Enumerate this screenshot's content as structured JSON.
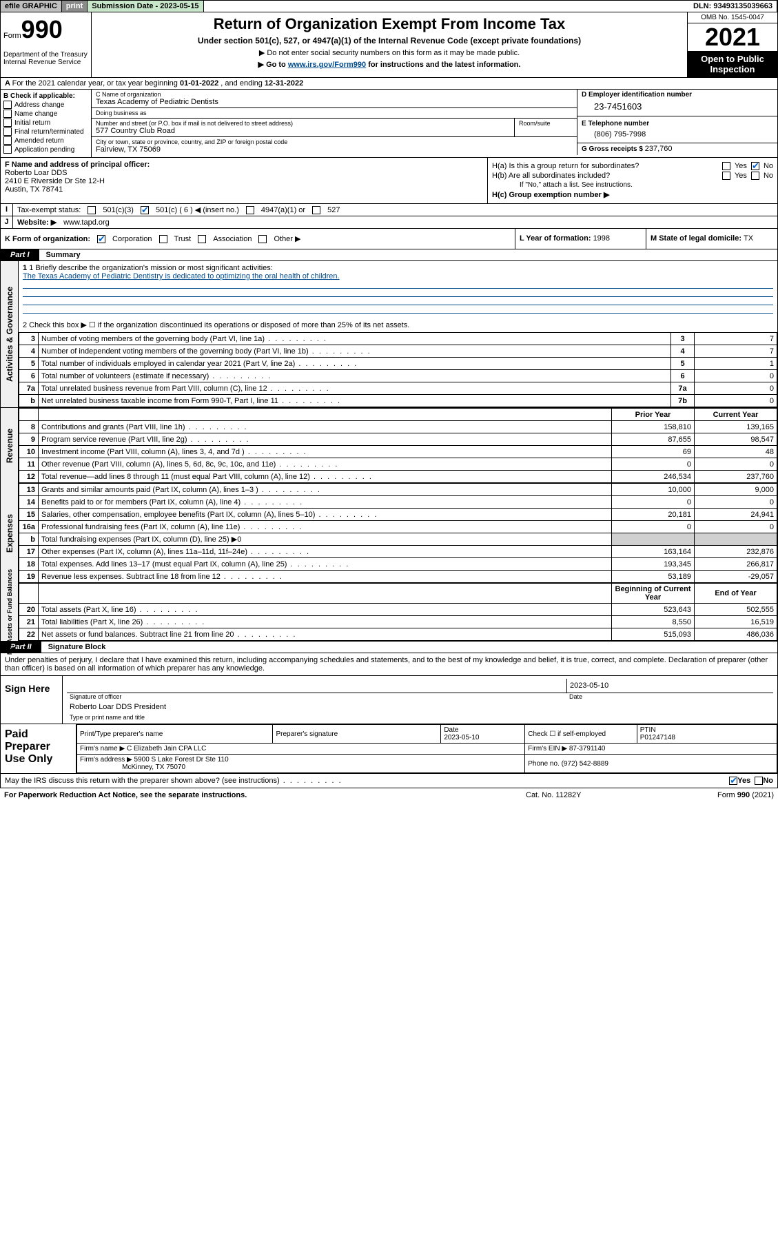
{
  "topbar": {
    "efile": "efile GRAPHIC",
    "print": "print",
    "subdate_label": "Submission Date - ",
    "subdate": "2023-05-15",
    "dln_label": "DLN: ",
    "dln": "93493135039663"
  },
  "header": {
    "form_prefix": "Form",
    "form_num": "990",
    "dept": "Department of the Treasury\nInternal Revenue Service",
    "title": "Return of Organization Exempt From Income Tax",
    "sub": "Under section 501(c), 527, or 4947(a)(1) of the Internal Revenue Code (except private foundations)",
    "note1": "▶ Do not enter social security numbers on this form as it may be made public.",
    "note2_pre": "▶ Go to ",
    "note2_link": "www.irs.gov/Form990",
    "note2_post": " for instructions and the latest information.",
    "omb": "OMB No. 1545-0047",
    "year": "2021",
    "inspect": "Open to Public Inspection"
  },
  "rowA": {
    "text_pre": "For the 2021 calendar year, or tax year beginning ",
    "begin": "01-01-2022",
    "mid": "   , and ending ",
    "end": "12-31-2022"
  },
  "colB": {
    "label": "B Check if applicable:",
    "items": [
      "Address change",
      "Name change",
      "Initial return",
      "Final return/terminated",
      "Amended return",
      "Application pending"
    ]
  },
  "boxC": {
    "lbl": "C Name of organization",
    "val": "Texas Academy of Pediatric Dentists",
    "dba_lbl": "Doing business as",
    "dba_val": "",
    "street_lbl": "Number and street (or P.O. box if mail is not delivered to street address)",
    "street_val": "577 Country Club Road",
    "room_lbl": "Room/suite",
    "city_lbl": "City or town, state or province, country, and ZIP or foreign postal code",
    "city_val": "Fairview, TX  75069"
  },
  "boxD": {
    "lbl": "D Employer identification number",
    "val": "23-7451603"
  },
  "boxE": {
    "lbl": "E Telephone number",
    "val": "(806) 795-7998"
  },
  "boxG": {
    "lbl": "G Gross receipts $ ",
    "val": "237,760"
  },
  "boxF": {
    "lbl": "F Name and address of principal officer:",
    "name": "Roberto Loar DDS",
    "addr1": "2410 E Riverside Dr Ste 12-H",
    "addr2": "Austin, TX  78741"
  },
  "boxH": {
    "a": "H(a)  Is this a group return for subordinates?",
    "b": "H(b)  Are all subordinates included?",
    "bnote": "If \"No,\" attach a list. See instructions.",
    "c": "H(c)  Group exemption number ▶"
  },
  "rowI": {
    "lbl": "Tax-exempt status:",
    "c3": "501(c)(3)",
    "c": "501(c) ( 6 ) ◀ (insert no.)",
    "c4947": "4947(a)(1) or",
    "c527": "527"
  },
  "rowJ": {
    "lbl": "Website: ▶",
    "val": "www.tapd.org"
  },
  "rowK": {
    "lbl": "K Form of organization:",
    "corp": "Corporation",
    "trust": "Trust",
    "assoc": "Association",
    "other": "Other ▶",
    "yof_lbl": "L Year of formation: ",
    "yof": "1998",
    "dom_lbl": "M State of legal domicile: ",
    "dom": "TX"
  },
  "part1": {
    "tab": "Part I",
    "title": "Summary"
  },
  "mission": {
    "line1_lbl": "1  Briefly describe the organization's mission or most significant activities:",
    "line1_val": "The Texas Academy of Pediatric Dentistry is dedicated to optimizing the oral health of children.",
    "line2": "2  Check this box ▶ ☐  if the organization discontinued its operations or disposed of more than 25% of its net assets."
  },
  "actgov_rows": [
    {
      "n": "3",
      "t": "Number of voting members of the governing body (Part VI, line 1a)",
      "box": "3",
      "v": "7"
    },
    {
      "n": "4",
      "t": "Number of independent voting members of the governing body (Part VI, line 1b)",
      "box": "4",
      "v": "7"
    },
    {
      "n": "5",
      "t": "Total number of individuals employed in calendar year 2021 (Part V, line 2a)",
      "box": "5",
      "v": "1"
    },
    {
      "n": "6",
      "t": "Total number of volunteers (estimate if necessary)",
      "box": "6",
      "v": "0"
    },
    {
      "n": "7a",
      "t": "Total unrelated business revenue from Part VIII, column (C), line 12",
      "box": "7a",
      "v": "0"
    },
    {
      "n": "b",
      "t": "Net unrelated business taxable income from Form 990-T, Part I, line 11",
      "box": "7b",
      "v": "0"
    }
  ],
  "twocol_hdr": {
    "prior": "Prior Year",
    "current": "Current Year"
  },
  "twocol_hdr2": {
    "prior": "Beginning of Current Year",
    "current": "End of Year"
  },
  "revenue_rows": [
    {
      "n": "8",
      "t": "Contributions and grants (Part VIII, line 1h)",
      "p": "158,810",
      "c": "139,165"
    },
    {
      "n": "9",
      "t": "Program service revenue (Part VIII, line 2g)",
      "p": "87,655",
      "c": "98,547"
    },
    {
      "n": "10",
      "t": "Investment income (Part VIII, column (A), lines 3, 4, and 7d )",
      "p": "69",
      "c": "48"
    },
    {
      "n": "11",
      "t": "Other revenue (Part VIII, column (A), lines 5, 6d, 8c, 9c, 10c, and 11e)",
      "p": "0",
      "c": "0"
    },
    {
      "n": "12",
      "t": "Total revenue—add lines 8 through 11 (must equal Part VIII, column (A), line 12)",
      "p": "246,534",
      "c": "237,760"
    }
  ],
  "expense_rows": [
    {
      "n": "13",
      "t": "Grants and similar amounts paid (Part IX, column (A), lines 1–3 )",
      "p": "10,000",
      "c": "9,000"
    },
    {
      "n": "14",
      "t": "Benefits paid to or for members (Part IX, column (A), line 4)",
      "p": "0",
      "c": "0"
    },
    {
      "n": "15",
      "t": "Salaries, other compensation, employee benefits (Part IX, column (A), lines 5–10)",
      "p": "20,181",
      "c": "24,941"
    },
    {
      "n": "16a",
      "t": "Professional fundraising fees (Part IX, column (A), line 11e)",
      "p": "0",
      "c": "0"
    },
    {
      "n": "b",
      "t": "Total fundraising expenses (Part IX, column (D), line 25) ▶0",
      "p": "",
      "c": "",
      "shade": true
    },
    {
      "n": "17",
      "t": "Other expenses (Part IX, column (A), lines 11a–11d, 11f–24e)",
      "p": "163,164",
      "c": "232,876"
    },
    {
      "n": "18",
      "t": "Total expenses. Add lines 13–17 (must equal Part IX, column (A), line 25)",
      "p": "193,345",
      "c": "266,817"
    },
    {
      "n": "19",
      "t": "Revenue less expenses. Subtract line 18 from line 12",
      "p": "53,189",
      "c": "-29,057"
    }
  ],
  "netassets_rows": [
    {
      "n": "20",
      "t": "Total assets (Part X, line 16)",
      "p": "523,643",
      "c": "502,555"
    },
    {
      "n": "21",
      "t": "Total liabilities (Part X, line 26)",
      "p": "8,550",
      "c": "16,519"
    },
    {
      "n": "22",
      "t": "Net assets or fund balances. Subtract line 21 from line 20",
      "p": "515,093",
      "c": "486,036"
    }
  ],
  "part2": {
    "tab": "Part II",
    "title": "Signature Block"
  },
  "sigdecl": "Under penalties of perjury, I declare that I have examined this return, including accompanying schedules and statements, and to the best of my knowledge and belief, it is true, correct, and complete. Declaration of preparer (other than officer) is based on all information of which preparer has any knowledge.",
  "sign": {
    "here": "Sign Here",
    "date": "2023-05-10",
    "officer_lbl": "Signature of officer",
    "date_lbl": "Date",
    "name": "Roberto Loar DDS  President",
    "name_lbl": "Type or print name and title"
  },
  "prep": {
    "title": "Paid Preparer Use Only",
    "pname_lbl": "Print/Type preparer's name",
    "psig_lbl": "Preparer's signature",
    "pdate_lbl": "Date",
    "pdate": "2023-05-10",
    "pchk_lbl": "Check ☐ if self-employed",
    "ptin_lbl": "PTIN",
    "ptin": "P01247148",
    "firm_lbl": "Firm's name   ▶ ",
    "firm": "C Elizabeth Jain CPA LLC",
    "ein_lbl": "Firm's EIN ▶ ",
    "ein": "87-3791140",
    "addr_lbl": "Firm's address ▶ ",
    "addr1": "5900 S Lake Forest Dr Ste 110",
    "addr2": "McKinney, TX  75070",
    "phone_lbl": "Phone no. ",
    "phone": "(972) 542-8889"
  },
  "discuss": "May the IRS discuss this return with the preparer shown above? (see instructions)",
  "footer": {
    "left": "For Paperwork Reduction Act Notice, see the separate instructions.",
    "mid": "Cat. No. 11282Y",
    "right": "Form 990 (2021)"
  },
  "colors": {
    "link": "#004b8d",
    "check": "#0066cc",
    "bg_shade": "#d0d0d0"
  }
}
